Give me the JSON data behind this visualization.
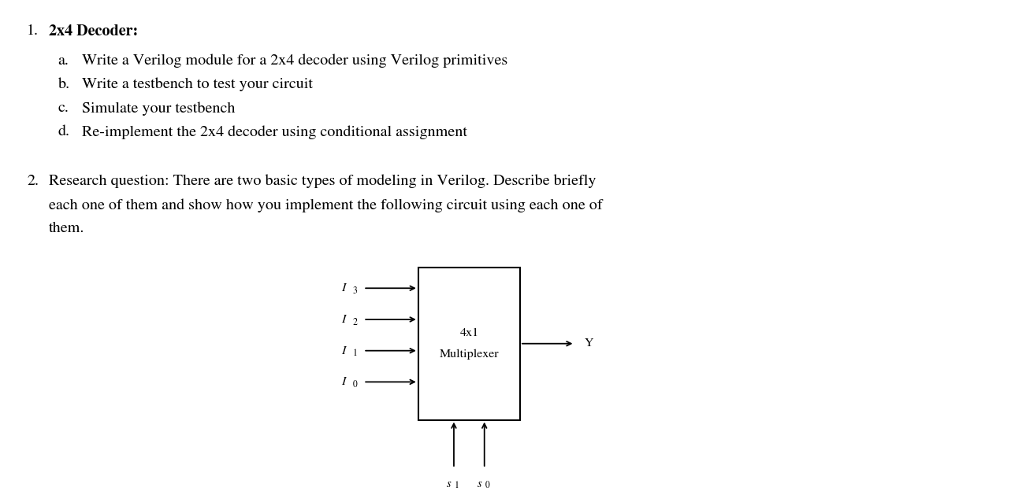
{
  "bg_color": "#ffffff",
  "figsize": [
    12.97,
    6.24
  ],
  "dpi": 100,
  "text_color": "#000000",
  "item1_number": "1.",
  "item1_header": "2x4 Decoder:",
  "item1_subs": [
    [
      "a.",
      "Write a Verilog module for a 2x4 decoder using Verilog primitives"
    ],
    [
      "b.",
      "Write a testbench to test your circuit"
    ],
    [
      "c.",
      "Simulate your testbench"
    ],
    [
      "d.",
      "Re-implement the 2x4 decoder using conditional assignment"
    ]
  ],
  "item2_number": "2.",
  "item2_lines": [
    "Research question: There are two basic types of modeling in Verilog. Describe briefly",
    "each one of them and show how you implement the following circuit using each one of",
    "them."
  ],
  "box_label_line1": "4x1",
  "box_label_line2": "Multiplexer",
  "inputs": [
    "I",
    "I",
    "I",
    "I"
  ],
  "input_subs": [
    "3",
    "2",
    "1",
    "0"
  ],
  "select_labels": [
    "s",
    "s"
  ],
  "select_subs": [
    "1",
    "0"
  ],
  "output_label": "Y",
  "main_fontsize": 14.5,
  "diagram_fontsize": 11.5,
  "diagram_sub_fontsize": 8.5
}
